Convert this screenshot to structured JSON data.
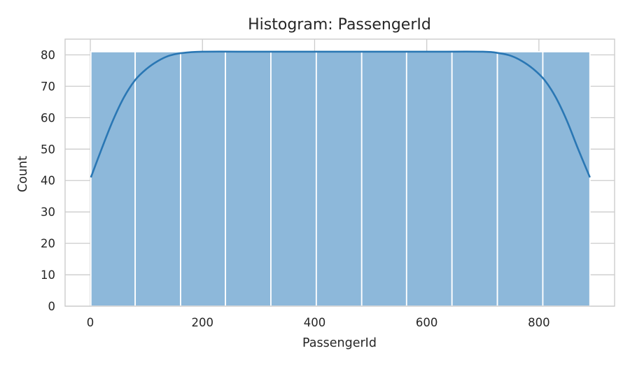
{
  "chart_data": {
    "type": "histogram",
    "title": "Histogram: PassengerId",
    "xlabel": "PassengerId",
    "ylabel": "Count",
    "xlim": [
      -45,
      935
    ],
    "ylim": [
      0,
      85
    ],
    "xticks": [
      0,
      200,
      400,
      600,
      800
    ],
    "yticks": [
      0,
      10,
      20,
      30,
      40,
      50,
      60,
      70,
      80
    ],
    "bins": [
      {
        "start": 1,
        "end": 80,
        "count": 81
      },
      {
        "start": 80,
        "end": 161,
        "count": 81
      },
      {
        "start": 161,
        "end": 241,
        "count": 81
      },
      {
        "start": 241,
        "end": 322,
        "count": 81
      },
      {
        "start": 322,
        "end": 403,
        "count": 81
      },
      {
        "start": 403,
        "end": 484,
        "count": 81
      },
      {
        "start": 484,
        "end": 564,
        "count": 81
      },
      {
        "start": 564,
        "end": 645,
        "count": 81
      },
      {
        "start": 645,
        "end": 726,
        "count": 81
      },
      {
        "start": 726,
        "end": 807,
        "count": 81
      },
      {
        "start": 807,
        "end": 891,
        "count": 81
      }
    ],
    "kde": [
      [
        1,
        41
      ],
      [
        20,
        50
      ],
      [
        40,
        59
      ],
      [
        60,
        66.5
      ],
      [
        80,
        72
      ],
      [
        100,
        75.5
      ],
      [
        120,
        78
      ],
      [
        140,
        79.7
      ],
      [
        160,
        80.5
      ],
      [
        200,
        81
      ],
      [
        300,
        81
      ],
      [
        400,
        81
      ],
      [
        500,
        81
      ],
      [
        600,
        81
      ],
      [
        700,
        81
      ],
      [
        730,
        80.5
      ],
      [
        750,
        79.7
      ],
      [
        770,
        78
      ],
      [
        790,
        75.5
      ],
      [
        810,
        72
      ],
      [
        830,
        66.5
      ],
      [
        850,
        59
      ],
      [
        870,
        50
      ],
      [
        891,
        41
      ]
    ],
    "grid": true,
    "colors": {
      "bar_fill": "#8db8da",
      "kde_line": "#2a77b4",
      "grid": "#cccccc",
      "text": "#262626"
    }
  }
}
